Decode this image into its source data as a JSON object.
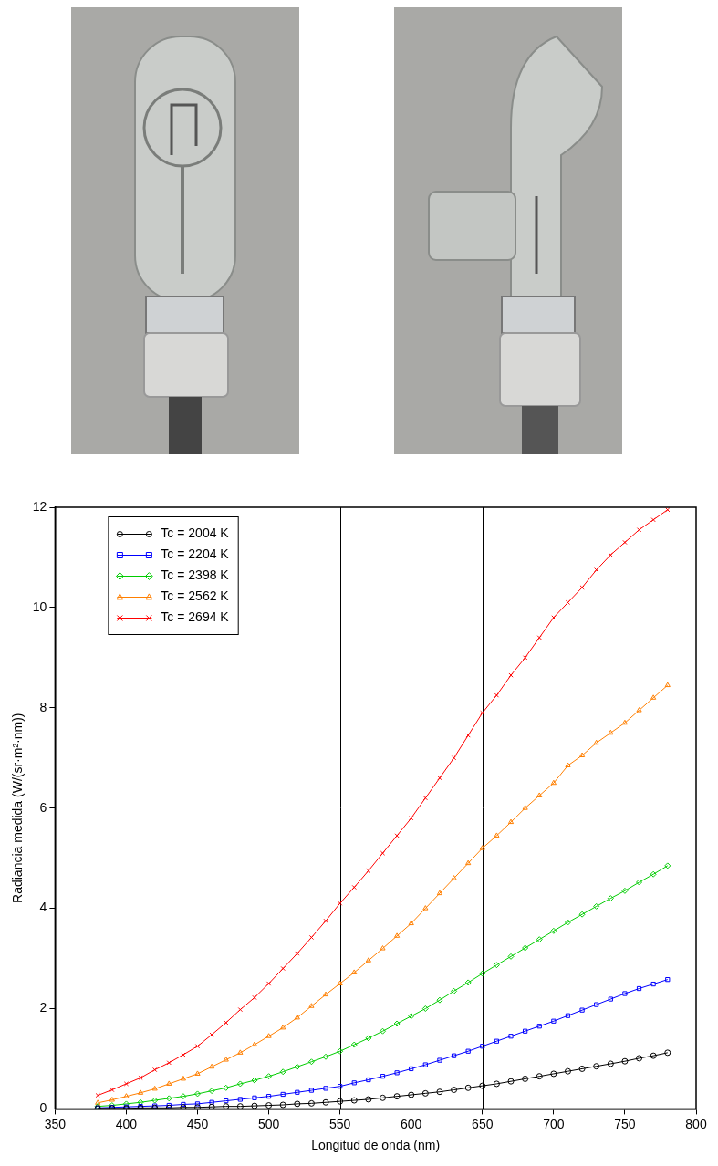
{
  "chart_data": {
    "type": "line",
    "x_label": "Longitud de onda (nm)",
    "y_label": "Radiancia medida (W/(sr·m²·nm))",
    "x": [
      380,
      390,
      400,
      410,
      420,
      430,
      440,
      450,
      460,
      470,
      480,
      490,
      500,
      510,
      520,
      530,
      540,
      550,
      560,
      570,
      580,
      590,
      600,
      610,
      620,
      630,
      640,
      650,
      660,
      670,
      680,
      690,
      700,
      710,
      720,
      730,
      740,
      750,
      760,
      770,
      780
    ],
    "series": [
      {
        "name": "Tc = 2004 K",
        "color": "#000000",
        "marker": "circle",
        "values": [
          0.01,
          0.01,
          0.01,
          0.02,
          0.02,
          0.02,
          0.03,
          0.03,
          0.04,
          0.05,
          0.05,
          0.06,
          0.07,
          0.08,
          0.1,
          0.11,
          0.13,
          0.15,
          0.17,
          0.19,
          0.22,
          0.25,
          0.28,
          0.31,
          0.34,
          0.38,
          0.42,
          0.46,
          0.5,
          0.55,
          0.6,
          0.65,
          0.7,
          0.75,
          0.8,
          0.85,
          0.9,
          0.95,
          1.01,
          1.06,
          1.12
        ]
      },
      {
        "name": "Tc = 2204 K",
        "color": "#0000ff",
        "marker": "square",
        "values": [
          0.02,
          0.03,
          0.04,
          0.05,
          0.06,
          0.07,
          0.09,
          0.1,
          0.13,
          0.16,
          0.19,
          0.22,
          0.25,
          0.29,
          0.33,
          0.37,
          0.41,
          0.45,
          0.52,
          0.58,
          0.65,
          0.72,
          0.8,
          0.88,
          0.97,
          1.06,
          1.15,
          1.25,
          1.35,
          1.45,
          1.55,
          1.65,
          1.75,
          1.86,
          1.97,
          2.08,
          2.19,
          2.3,
          2.4,
          2.49,
          2.58
        ]
      },
      {
        "name": "Tc = 2398 K",
        "color": "#00cc00",
        "marker": "diamond",
        "values": [
          0.05,
          0.07,
          0.1,
          0.13,
          0.17,
          0.21,
          0.25,
          0.3,
          0.36,
          0.42,
          0.5,
          0.57,
          0.65,
          0.74,
          0.84,
          0.94,
          1.04,
          1.15,
          1.28,
          1.41,
          1.55,
          1.7,
          1.85,
          2.0,
          2.17,
          2.35,
          2.52,
          2.7,
          2.87,
          3.04,
          3.21,
          3.38,
          3.55,
          3.72,
          3.88,
          4.04,
          4.2,
          4.35,
          4.52,
          4.68,
          4.85
        ]
      },
      {
        "name": "Tc = 2562 K",
        "color": "#ff7f00",
        "marker": "triangle",
        "values": [
          0.12,
          0.18,
          0.25,
          0.32,
          0.4,
          0.5,
          0.6,
          0.7,
          0.84,
          0.98,
          1.12,
          1.28,
          1.45,
          1.62,
          1.82,
          2.05,
          2.28,
          2.5,
          2.72,
          2.96,
          3.2,
          3.45,
          3.7,
          4.0,
          4.3,
          4.6,
          4.9,
          5.2,
          5.45,
          5.72,
          6.0,
          6.25,
          6.5,
          6.85,
          7.05,
          7.3,
          7.5,
          7.7,
          7.95,
          8.2,
          8.45
        ]
      },
      {
        "name": "Tc = 2694 K",
        "color": "#ff0000",
        "marker": "x",
        "values": [
          0.27,
          0.38,
          0.5,
          0.62,
          0.78,
          0.92,
          1.08,
          1.25,
          1.48,
          1.72,
          1.98,
          2.22,
          2.5,
          2.8,
          3.1,
          3.42,
          3.75,
          4.1,
          4.42,
          4.75,
          5.1,
          5.45,
          5.8,
          6.2,
          6.6,
          7.0,
          7.45,
          7.9,
          8.25,
          8.65,
          9.0,
          9.4,
          9.8,
          10.1,
          10.4,
          10.75,
          11.05,
          11.3,
          11.55,
          11.75,
          11.95
        ]
      }
    ],
    "vlines": [
      550,
      650
    ],
    "xlim": [
      350,
      800
    ],
    "xticks": [
      350,
      400,
      450,
      500,
      550,
      600,
      650,
      700,
      750,
      800
    ],
    "ylim": [
      0,
      12
    ],
    "yticks": [
      0,
      2,
      4,
      6,
      8,
      10,
      12
    ],
    "grid": false,
    "legend": "upper left"
  }
}
